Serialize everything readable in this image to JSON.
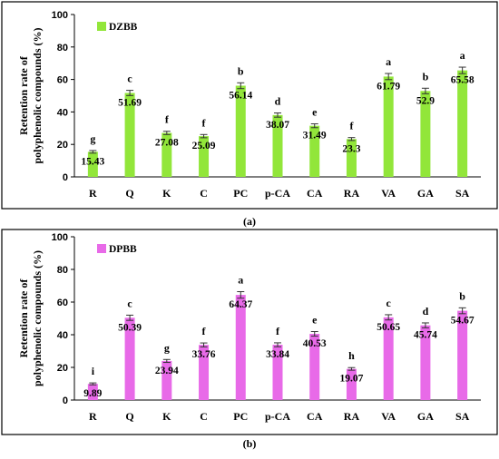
{
  "chart_data": [
    {
      "type": "bar",
      "caption": "(a)",
      "ylabel_line1": "Retention rate of",
      "ylabel_line2": "polyphenolic compounds (%)",
      "ylim": [
        0,
        100
      ],
      "yticks": [
        0,
        20,
        40,
        60,
        80,
        100
      ],
      "categories": [
        "R",
        "Q",
        "K",
        "C",
        "PC",
        "p-CA",
        "CA",
        "RA",
        "VA",
        "GA",
        "SA"
      ],
      "series": [
        {
          "name": "DZBB",
          "color": "#92e63a",
          "values": [
            15.43,
            51.69,
            27.08,
            25.09,
            56.14,
            38.07,
            31.49,
            23.3,
            61.79,
            52.9,
            65.58
          ],
          "errors": [
            0.8,
            1.6,
            1.0,
            1.0,
            1.8,
            1.3,
            1.2,
            0.9,
            1.9,
            1.7,
            2.0
          ],
          "value_labels": [
            "15.43",
            "51.69",
            "27.08",
            "25.09",
            "56.14",
            "38.07",
            "31.49",
            "23.3",
            "61.79",
            "52.9",
            "65.58"
          ],
          "letters": [
            "g",
            "c",
            "f",
            "f",
            "b",
            "d",
            "e",
            "f",
            "a",
            "b",
            "a"
          ]
        }
      ],
      "legend": "top-left",
      "grid": false
    },
    {
      "type": "bar",
      "caption": "(b)",
      "ylabel_line1": "Retention rate of",
      "ylabel_line2": "polyphenolic compounds (%)",
      "ylim": [
        0,
        100
      ],
      "yticks": [
        0,
        20,
        40,
        60,
        80,
        100
      ],
      "categories": [
        "R",
        "Q",
        "K",
        "C",
        "PC",
        "p-CA",
        "CA",
        "RA",
        "VA",
        "GA",
        "SA"
      ],
      "series": [
        {
          "name": "DPBB",
          "color": "#e86ae8",
          "values": [
            9.89,
            50.39,
            23.94,
            33.76,
            64.37,
            33.84,
            40.53,
            19.07,
            50.65,
            45.74,
            54.67
          ],
          "errors": [
            0.6,
            1.6,
            0.9,
            1.2,
            2.0,
            1.2,
            1.4,
            0.8,
            1.6,
            1.5,
            1.8
          ],
          "value_labels": [
            "9.89",
            "50.39",
            "23.94",
            "33.76",
            "64.37",
            "33.84",
            "40.53",
            "19.07",
            "50.65",
            "45.74",
            "54.67"
          ],
          "letters": [
            "i",
            "c",
            "g",
            "f",
            "a",
            "f",
            "e",
            "h",
            "c",
            "d",
            "b"
          ]
        }
      ],
      "legend": "top-left",
      "grid": false
    }
  ]
}
